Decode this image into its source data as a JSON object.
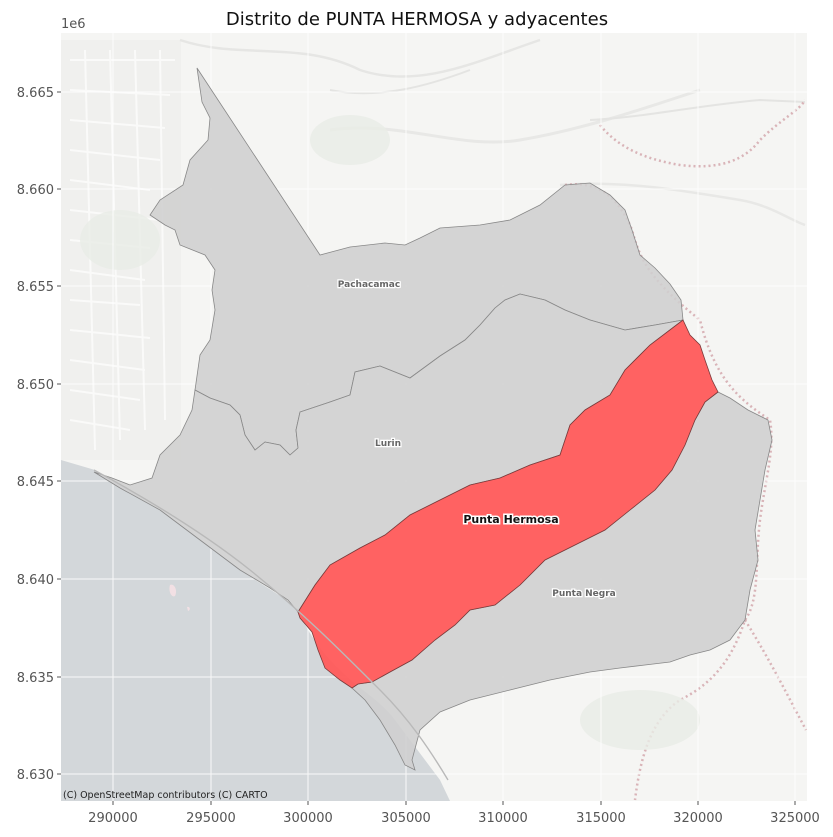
{
  "title": "Distrito de PUNTA HERMOSA y adyacentes",
  "offset_label": "1e6",
  "attribution": "(C) OpenStreetMap contributors (C) CARTO",
  "x_ticks": [
    "290000",
    "295000",
    "300000",
    "305000",
    "310000",
    "315000",
    "320000",
    "325000"
  ],
  "y_ticks": [
    "8.665",
    "8.660",
    "8.655",
    "8.650",
    "8.645",
    "8.640",
    "8.635",
    "8.630"
  ],
  "districts": {
    "highlight": "Punta Hermosa",
    "neighbors": [
      "Pachacamac",
      "Lurin",
      "Punta Negra"
    ]
  },
  "colors": {
    "highlight_fill": "#ff5a5a",
    "neighbor_fill": "#cfcfcf",
    "sea": "#d3d7da",
    "land": "#f5f5f3",
    "grid": "#ffffff"
  },
  "chart_data": {
    "type": "map",
    "x_range": [
      287300,
      325500
    ],
    "y_range": [
      8628500,
      8668100
    ],
    "grid": true,
    "basemap": "CARTO light",
    "labels": [
      {
        "name": "Pachacamac",
        "x": 302800,
        "y": 8655000
      },
      {
        "name": "Lurin",
        "x": 304200,
        "y": 8646900
      },
      {
        "name": "Punta Hermosa",
        "x": 309900,
        "y": 8643000
      },
      {
        "name": "Punta Negra",
        "x": 314200,
        "y": 8639300
      }
    ]
  }
}
